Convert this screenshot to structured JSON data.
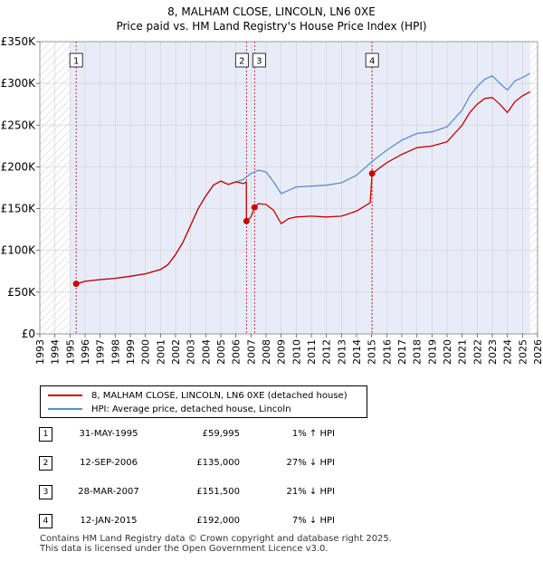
{
  "title_line1": "8, MALHAM CLOSE, LINCOLN, LN6 0XE",
  "title_line2": "Price paid vs. HM Land Registry's House Price Index (HPI)",
  "colors": {
    "property": "#cc0000",
    "hpi": "#5b8fd0",
    "shade": "#e8ecf8",
    "grid": "#d4d4d4"
  },
  "legend": {
    "property_label": "8, MALHAM CLOSE, LINCOLN, LN6 0XE (detached house)",
    "hpi_label": "HPI: Average price, detached house, Lincoln"
  },
  "sales": [
    {
      "num": "1",
      "date": "31-MAY-1995",
      "price": "£59,995",
      "hpi_delta": "1% ↑ HPI"
    },
    {
      "num": "2",
      "date": "12-SEP-2006",
      "price": "£135,000",
      "hpi_delta": "27% ↓ HPI"
    },
    {
      "num": "3",
      "date": "28-MAR-2007",
      "price": "£151,500",
      "hpi_delta": "21% ↓ HPI"
    },
    {
      "num": "4",
      "date": "12-JAN-2015",
      "price": "£192,000",
      "hpi_delta": "7% ↓ HPI"
    }
  ],
  "footer_line1": "Contains HM Land Registry data © Crown copyright and database right 2025.",
  "footer_line2": "This data is licensed under the Open Government Licence v3.0.",
  "chart_data": {
    "type": "line",
    "title": "8, MALHAM CLOSE, LINCOLN, LN6 0XE — Price paid vs. HM Land Registry's House Price Index (HPI)",
    "xlabel": "",
    "ylabel": "",
    "xlim": [
      1993,
      2026
    ],
    "ylim": [
      0,
      350000
    ],
    "x_ticks": [
      1993,
      1994,
      1995,
      1996,
      1997,
      1998,
      1999,
      2000,
      2001,
      2002,
      2003,
      2004,
      2005,
      2006,
      2007,
      2008,
      2009,
      2010,
      2011,
      2012,
      2013,
      2014,
      2015,
      2016,
      2017,
      2018,
      2019,
      2020,
      2021,
      2022,
      2023,
      2024,
      2025,
      2026
    ],
    "y_ticks": [
      0,
      50000,
      100000,
      150000,
      200000,
      250000,
      300000,
      350000
    ],
    "y_tick_labels": [
      "£0",
      "£50K",
      "£100K",
      "£150K",
      "£200K",
      "£250K",
      "£300K",
      "£350K"
    ],
    "data_range": [
      1995.0,
      2025.5
    ],
    "sale_markers": [
      {
        "label": "1",
        "x": 1995.41,
        "y": 59995
      },
      {
        "label": "2",
        "x": 2006.7,
        "y": 135000
      },
      {
        "label": "3",
        "x": 2007.24,
        "y": 151500
      },
      {
        "label": "4",
        "x": 2015.03,
        "y": 192000
      }
    ],
    "series": [
      {
        "name": "8, MALHAM CLOSE, LINCOLN, LN6 0XE (detached house)",
        "x": [
          1995.41,
          1996,
          1997,
          1998,
          1999,
          2000,
          2001,
          2001.5,
          2002,
          2002.5,
          2003,
          2003.5,
          2004,
          2004.5,
          2005,
          2005.5,
          2006,
          2006.5,
          2006.69,
          2006.7,
          2007,
          2007.24,
          2007.5,
          2008,
          2008.5,
          2009,
          2009.5,
          2010,
          2011,
          2012,
          2013,
          2014,
          2014.9,
          2015.03,
          2016,
          2017,
          2018,
          2019,
          2020,
          2021,
          2021.5,
          2022,
          2022.5,
          2023,
          2023.5,
          2024,
          2024.5,
          2025,
          2025.5
        ],
        "y": [
          59995,
          63000,
          65000,
          66500,
          69000,
          72000,
          77000,
          83000,
          95000,
          110000,
          130000,
          150000,
          165000,
          178000,
          183000,
          179000,
          182000,
          180000,
          182000,
          135000,
          140000,
          151500,
          156000,
          155000,
          148000,
          132000,
          138000,
          140000,
          141000,
          140000,
          141000,
          147000,
          157000,
          192000,
          205000,
          215000,
          223000,
          225000,
          230000,
          250000,
          265000,
          275000,
          282000,
          283000,
          275000,
          265000,
          278000,
          285000,
          290000
        ]
      },
      {
        "name": "HPI: Average price, detached house, Lincoln",
        "x": [
          1995.41,
          1996,
          1997,
          1998,
          1999,
          2000,
          2001,
          2001.5,
          2002,
          2002.5,
          2003,
          2003.5,
          2004,
          2004.5,
          2005,
          2005.5,
          2006,
          2006.5,
          2007,
          2007.5,
          2008,
          2008.5,
          2009,
          2009.5,
          2010,
          2011,
          2012,
          2013,
          2014,
          2015,
          2016,
          2017,
          2018,
          2019,
          2020,
          2021,
          2021.5,
          2022,
          2022.5,
          2023,
          2023.5,
          2024,
          2024.5,
          2025,
          2025.5
        ],
        "y": [
          59400,
          63000,
          65000,
          66500,
          69000,
          72000,
          77000,
          83000,
          95000,
          110000,
          130000,
          150000,
          165000,
          178000,
          183000,
          179000,
          182000,
          185000,
          192000,
          196000,
          194000,
          182000,
          168000,
          172000,
          176000,
          177000,
          178000,
          181000,
          190000,
          206000,
          220000,
          232000,
          240000,
          242000,
          248000,
          268000,
          285000,
          296000,
          305000,
          309000,
          300000,
          292000,
          303000,
          307000,
          312000
        ]
      }
    ]
  }
}
